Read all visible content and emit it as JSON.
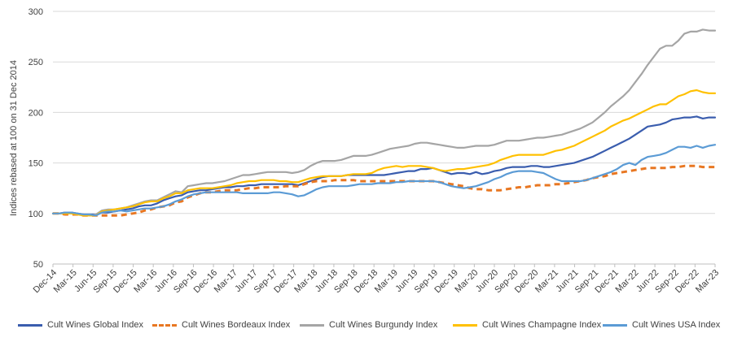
{
  "chart_data": {
    "type": "line",
    "ylabel": "Indices rebased at 100 on 31 Dec 2014",
    "ylim": [
      50,
      300
    ],
    "yticks": [
      "50",
      "100",
      "150",
      "200",
      "250",
      "300"
    ],
    "x_tick_labels": [
      "Dec-14",
      "Mar-15",
      "Jun-15",
      "Sep-15",
      "Dec-15",
      "Mar-16",
      "Jun-16",
      "Sep-16",
      "Dec-16",
      "Mar-17",
      "Jun-17",
      "Sep-17",
      "Dec-17",
      "Mar-18",
      "Jun-18",
      "Sep-18",
      "Dec-18",
      "Mar-19",
      "Jun-19",
      "Sep-19",
      "Dec-19",
      "Mar-20",
      "Jun-20",
      "Sep-20",
      "Dec-20",
      "Mar-21",
      "Jun-21",
      "Sep-21",
      "Dec-21",
      "Mar-22",
      "Jun-22",
      "Sep-22",
      "Dec-22",
      "Mar-23"
    ],
    "x_start": "Dec-14",
    "x_end": "Mar-23",
    "grid": "horizontal",
    "legend_position": "bottom",
    "series": [
      {
        "name": "Cult Wines Global Index",
        "color": "#3A5DAE",
        "dash": "solid",
        "values": [
          100,
          100,
          101,
          101,
          100,
          99,
          99,
          99,
          101,
          101,
          102,
          103,
          104,
          105,
          107,
          108,
          108,
          110,
          113,
          115,
          117,
          118,
          121,
          122,
          123,
          123,
          124,
          125,
          126,
          126,
          127,
          127,
          128,
          128,
          129,
          129,
          129,
          129,
          129,
          129,
          128,
          130,
          132,
          134,
          136,
          137,
          137,
          137,
          138,
          138,
          138,
          138,
          138,
          138,
          138,
          139,
          140,
          141,
          142,
          142,
          144,
          144,
          145,
          143,
          141,
          139,
          140,
          140,
          139,
          141,
          139,
          140,
          142,
          143,
          145,
          146,
          146,
          146,
          147,
          147,
          146,
          146,
          147,
          148,
          149,
          150,
          152,
          154,
          156,
          159,
          162,
          165,
          168,
          171,
          174,
          178,
          182,
          186,
          187,
          188,
          190,
          193,
          194,
          195,
          195,
          196,
          194,
          195,
          195
        ]
      },
      {
        "name": "Cult Wines Bordeaux Index",
        "color": "#E87722",
        "dash": "dashed",
        "values": [
          100,
          100,
          99,
          99,
          99,
          98,
          98,
          98,
          98,
          98,
          98,
          98,
          99,
          100,
          101,
          103,
          104,
          106,
          107,
          108,
          111,
          112,
          116,
          118,
          120,
          121,
          121,
          122,
          123,
          123,
          123,
          124,
          125,
          125,
          126,
          126,
          126,
          126,
          127,
          127,
          127,
          129,
          131,
          132,
          132,
          132,
          133,
          133,
          133,
          133,
          132,
          132,
          132,
          132,
          132,
          132,
          132,
          132,
          132,
          132,
          132,
          132,
          132,
          131,
          130,
          129,
          128,
          127,
          125,
          124,
          124,
          123,
          123,
          123,
          124,
          125,
          126,
          126,
          127,
          128,
          128,
          128,
          129,
          129,
          130,
          131,
          132,
          133,
          135,
          136,
          137,
          139,
          140,
          141,
          142,
          143,
          144,
          145,
          145,
          145,
          145,
          146,
          146,
          147,
          147,
          147,
          146,
          146,
          146
        ]
      },
      {
        "name": "Cult Wines Burgundy Index",
        "color": "#A5A5A5",
        "dash": "solid",
        "values": [
          100,
          100,
          101,
          101,
          100,
          99,
          98,
          99,
          103,
          104,
          104,
          105,
          106,
          108,
          110,
          112,
          113,
          113,
          116,
          119,
          122,
          121,
          127,
          128,
          129,
          130,
          130,
          131,
          132,
          134,
          136,
          138,
          138,
          139,
          140,
          141,
          141,
          141,
          141,
          140,
          141,
          143,
          147,
          150,
          152,
          152,
          152,
          153,
          155,
          157,
          157,
          157,
          158,
          160,
          162,
          164,
          165,
          166,
          167,
          169,
          170,
          170,
          169,
          168,
          167,
          166,
          165,
          165,
          166,
          167,
          167,
          167,
          168,
          170,
          172,
          172,
          172,
          173,
          174,
          175,
          175,
          176,
          177,
          178,
          180,
          182,
          184,
          187,
          190,
          195,
          200,
          206,
          211,
          216,
          222,
          230,
          238,
          247,
          255,
          263,
          266,
          266,
          271,
          278,
          280,
          280,
          282,
          281,
          281
        ]
      },
      {
        "name": "Cult Wines Champagne Index",
        "color": "#FFC000",
        "dash": "solid",
        "values": [
          100,
          100,
          100,
          100,
          99,
          98,
          98,
          98,
          102,
          103,
          104,
          105,
          106,
          107,
          109,
          111,
          112,
          112,
          115,
          117,
          120,
          120,
          123,
          124,
          125,
          125,
          125,
          126,
          127,
          128,
          130,
          131,
          132,
          132,
          133,
          133,
          133,
          132,
          132,
          131,
          131,
          133,
          135,
          136,
          137,
          137,
          137,
          137,
          138,
          139,
          139,
          139,
          140,
          143,
          145,
          146,
          147,
          146,
          147,
          147,
          147,
          146,
          145,
          143,
          142,
          143,
          144,
          144,
          145,
          146,
          147,
          148,
          150,
          153,
          155,
          157,
          158,
          158,
          158,
          158,
          158,
          160,
          162,
          163,
          165,
          167,
          170,
          173,
          176,
          179,
          182,
          186,
          189,
          192,
          194,
          197,
          200,
          203,
          206,
          208,
          208,
          212,
          216,
          218,
          221,
          222,
          220,
          219,
          219
        ]
      },
      {
        "name": "Cult Wines USA Index",
        "color": "#5B9BD5",
        "dash": "solid",
        "values": [
          100,
          100,
          101,
          101,
          100,
          99,
          99,
          98,
          101,
          102,
          102,
          103,
          102,
          103,
          104,
          105,
          105,
          106,
          107,
          109,
          112,
          114,
          117,
          119,
          120,
          121,
          121,
          121,
          121,
          121,
          121,
          120,
          120,
          120,
          120,
          120,
          121,
          121,
          120,
          119,
          117,
          118,
          121,
          124,
          126,
          127,
          127,
          127,
          127,
          128,
          129,
          129,
          129,
          130,
          130,
          130,
          131,
          131,
          132,
          132,
          132,
          132,
          132,
          131,
          129,
          127,
          126,
          125,
          126,
          127,
          129,
          131,
          134,
          136,
          139,
          141,
          142,
          142,
          142,
          141,
          140,
          137,
          134,
          132,
          132,
          132,
          132,
          133,
          135,
          137,
          139,
          141,
          144,
          148,
          150,
          148,
          153,
          156,
          157,
          158,
          160,
          163,
          166,
          166,
          165,
          167,
          165,
          167,
          168
        ]
      }
    ]
  }
}
